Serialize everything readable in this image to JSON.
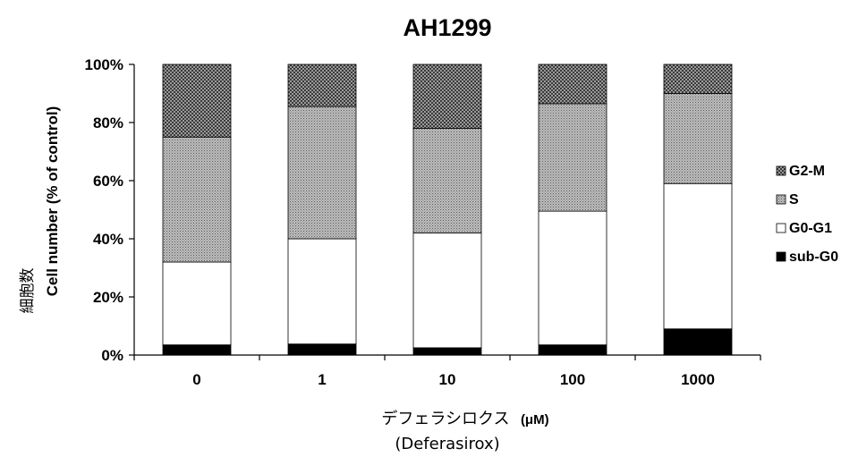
{
  "chart_data": {
    "type": "bar",
    "stacked": true,
    "title": "AH1299",
    "ylabel_jp": "細胞数",
    "ylabel": "Cell number (% of control)",
    "xlabel_jp": "デフェラシロクス",
    "xlabel_unit": "(μM)",
    "xlabel_sub": "(Deferasirox)",
    "categories": [
      "0",
      "1",
      "10",
      "100",
      "1000"
    ],
    "yticks": [
      "0%",
      "20%",
      "40%",
      "60%",
      "80%",
      "100%"
    ],
    "ylim": [
      0,
      100
    ],
    "legend_position": "right",
    "series": [
      {
        "name": "sub-G0",
        "values": [
          3.5,
          3.8,
          2.5,
          3.5,
          9.0
        ],
        "pattern": "black"
      },
      {
        "name": "G0-G1",
        "values": [
          28.5,
          36.2,
          39.5,
          46.0,
          50.0
        ],
        "pattern": "white"
      },
      {
        "name": "S",
        "values": [
          43.0,
          45.5,
          36.0,
          37.0,
          31.0
        ],
        "pattern": "fine-dots"
      },
      {
        "name": "G2-M",
        "values": [
          25.0,
          14.5,
          22.0,
          13.5,
          10.0
        ],
        "pattern": "crosshatch"
      }
    ]
  }
}
